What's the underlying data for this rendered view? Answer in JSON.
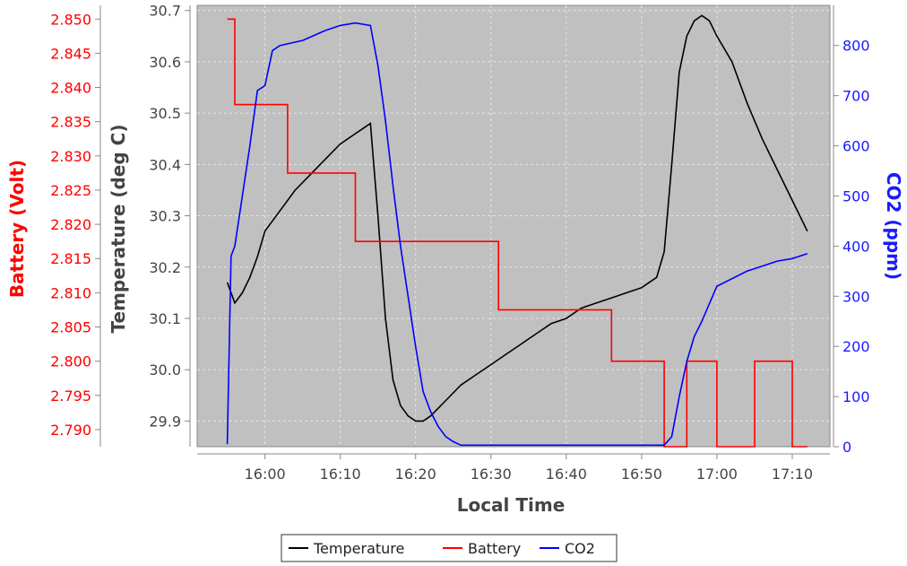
{
  "chart_data": {
    "type": "line",
    "title": "",
    "xlabel": "Local Time",
    "x_ticks": [
      "16:00",
      "16:10",
      "16:20",
      "16:30",
      "16:40",
      "16:50",
      "17:00",
      "17:10"
    ],
    "y_axes": {
      "battery": {
        "label": "Battery (Volt)",
        "color": "#ff0000",
        "ylim": [
          2.7875,
          2.852
        ],
        "ticks": [
          "2.850",
          "2.845",
          "2.840",
          "2.835",
          "2.830",
          "2.825",
          "2.820",
          "2.815",
          "2.810",
          "2.805",
          "2.800",
          "2.795",
          "2.790"
        ]
      },
      "temperature": {
        "label": "Temperature (deg C)",
        "color": "#222222",
        "ylim": [
          29.85,
          30.71
        ],
        "ticks": [
          "30.7",
          "30.6",
          "30.5",
          "30.4",
          "30.3",
          "30.2",
          "30.1",
          "30.0",
          "29.9"
        ]
      },
      "co2": {
        "label": "CO2 (ppm)",
        "color": "#0000ff",
        "ylim": [
          0,
          880
        ],
        "ticks": [
          "800",
          "700",
          "600",
          "500",
          "400",
          "300",
          "200",
          "100",
          "0"
        ]
      }
    },
    "grid": true,
    "legend_position": "bottom-center",
    "series": [
      {
        "name": "Temperature",
        "axis": "temperature",
        "color": "#000000",
        "x": [
          "15:55",
          "15:56",
          "15:57",
          "15:58",
          "15:59",
          "16:00",
          "16:02",
          "16:04",
          "16:06",
          "16:08",
          "16:10",
          "16:12",
          "16:13",
          "16:14",
          "16:15",
          "16:16",
          "16:17",
          "16:18",
          "16:19",
          "16:20",
          "16:21",
          "16:22",
          "16:24",
          "16:26",
          "16:28",
          "16:30",
          "16:32",
          "16:34",
          "16:36",
          "16:38",
          "16:40",
          "16:42",
          "16:44",
          "16:46",
          "16:48",
          "16:50",
          "16:52",
          "16:53",
          "16:54",
          "16:55",
          "16:56",
          "16:57",
          "16:58",
          "16:59",
          "17:00",
          "17:02",
          "17:04",
          "17:06",
          "17:08",
          "17:10",
          "17:12"
        ],
        "y": [
          30.17,
          30.13,
          30.15,
          30.18,
          30.22,
          30.27,
          30.31,
          30.35,
          30.38,
          30.41,
          30.44,
          30.46,
          30.47,
          30.48,
          30.3,
          30.1,
          29.98,
          29.93,
          29.91,
          29.9,
          29.9,
          29.91,
          29.94,
          29.97,
          29.99,
          30.01,
          30.03,
          30.05,
          30.07,
          30.09,
          30.1,
          30.12,
          30.13,
          30.14,
          30.15,
          30.16,
          30.18,
          30.23,
          30.4,
          30.58,
          30.65,
          30.68,
          30.69,
          30.68,
          30.65,
          30.6,
          30.52,
          30.45,
          30.39,
          30.33,
          30.27
        ]
      },
      {
        "name": "Battery",
        "axis": "battery",
        "color": "#ff0000",
        "x": [
          "15:55",
          "15:56",
          "16:00",
          "16:03",
          "16:05",
          "16:10",
          "16:12",
          "16:15",
          "16:20",
          "16:25",
          "16:28",
          "16:31",
          "16:35",
          "16:40",
          "16:44",
          "16:46",
          "16:48",
          "16:50",
          "16:51",
          "16:53",
          "16:56",
          "17:00",
          "17:05",
          "17:10",
          "17:12"
        ],
        "y": [
          2.85,
          2.8375,
          2.8375,
          2.8275,
          2.8275,
          2.8275,
          2.8175,
          2.8175,
          2.8175,
          2.8175,
          2.8175,
          2.8075,
          2.8075,
          2.8075,
          2.8075,
          2.8,
          2.8,
          2.8,
          2.8,
          2.7875,
          2.8,
          2.7875,
          2.8,
          2.7875,
          2.7875
        ]
      },
      {
        "name": "CO2",
        "axis": "co2",
        "color": "#0000ff",
        "x": [
          "15:55",
          "15:55.5",
          "15:56",
          "15:57",
          "15:58",
          "15:59",
          "16:00",
          "16:01",
          "16:02",
          "16:05",
          "16:08",
          "16:10",
          "16:12",
          "16:14",
          "16:15",
          "16:16",
          "16:17",
          "16:18",
          "16:19",
          "16:20",
          "16:21",
          "16:22",
          "16:23",
          "16:24",
          "16:25",
          "16:26",
          "16:28",
          "16:30",
          "16:40",
          "16:50",
          "16:52",
          "16:53",
          "16:54",
          "16:55",
          "16:56",
          "16:57",
          "16:58",
          "17:00",
          "17:02",
          "17:04",
          "17:06",
          "17:08",
          "17:10",
          "17:12"
        ],
        "y": [
          5,
          380,
          400,
          500,
          600,
          710,
          720,
          790,
          800,
          810,
          830,
          840,
          845,
          840,
          760,
          650,
          520,
          400,
          300,
          200,
          110,
          70,
          40,
          20,
          10,
          3,
          3,
          3,
          3,
          3,
          3,
          3,
          20,
          100,
          170,
          220,
          250,
          320,
          335,
          350,
          360,
          370,
          375,
          385
        ]
      }
    ]
  },
  "legend": {
    "items": [
      {
        "label": "Temperature",
        "color": "#000000"
      },
      {
        "label": "Battery",
        "color": "#ff0000"
      },
      {
        "label": "CO2",
        "color": "#0000ff"
      }
    ]
  }
}
